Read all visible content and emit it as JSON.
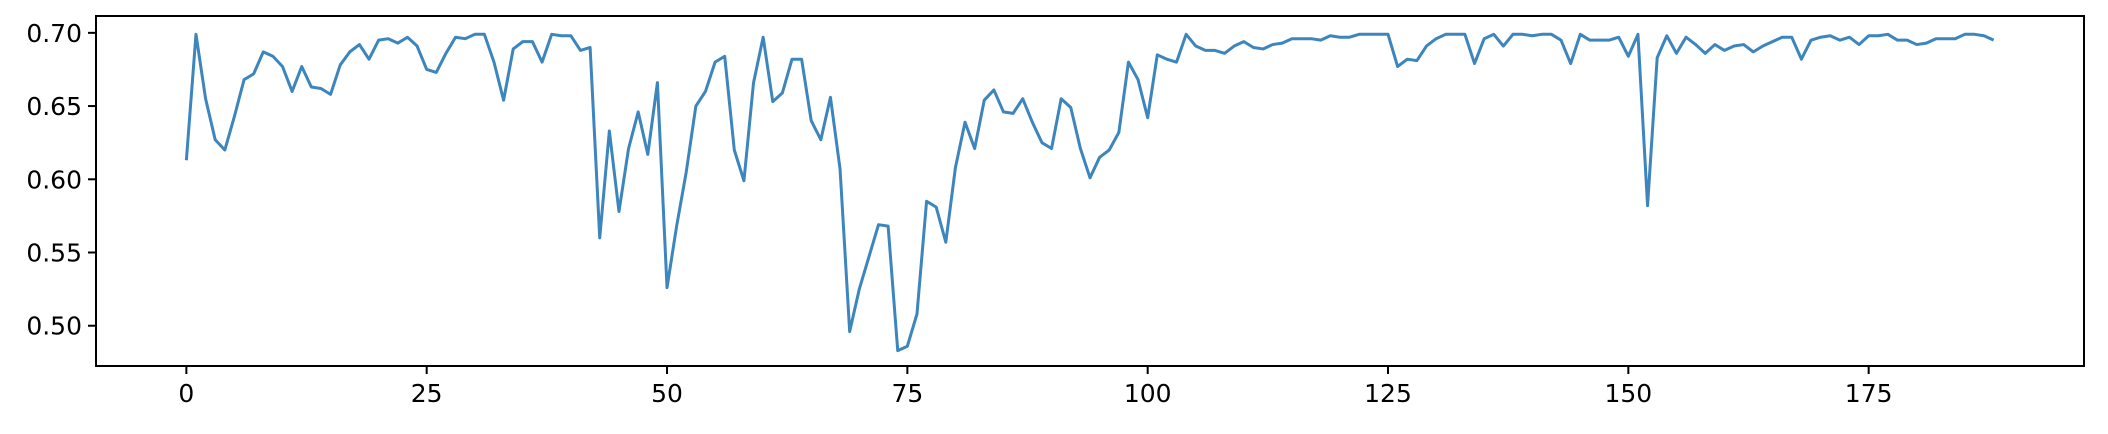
{
  "chart_data": {
    "type": "line",
    "title": "",
    "xlabel": "",
    "ylabel": "",
    "xlim": [
      -9.4,
      197.4
    ],
    "ylim": [
      0.4725,
      0.7115
    ],
    "xticks": [
      0,
      25,
      50,
      75,
      100,
      125,
      150,
      175
    ],
    "xtick_labels": [
      "0",
      "25",
      "50",
      "75",
      "100",
      "125",
      "150",
      "175"
    ],
    "yticks": [
      0.5,
      0.55,
      0.6,
      0.65,
      0.7
    ],
    "ytick_labels": [
      "0.50",
      "0.55",
      "0.60",
      "0.65",
      "0.70"
    ],
    "grid": false,
    "series": [
      {
        "color": "#3d85bd",
        "x_start": 0,
        "x_step": 1,
        "values": [
          0.613,
          0.699,
          0.655,
          0.627,
          0.62,
          0.643,
          0.668,
          0.672,
          0.687,
          0.684,
          0.677,
          0.66,
          0.677,
          0.663,
          0.662,
          0.658,
          0.678,
          0.687,
          0.692,
          0.682,
          0.695,
          0.696,
          0.693,
          0.697,
          0.691,
          0.675,
          0.673,
          0.686,
          0.697,
          0.696,
          0.699,
          0.699,
          0.68,
          0.654,
          0.689,
          0.694,
          0.694,
          0.68,
          0.699,
          0.698,
          0.698,
          0.688,
          0.69,
          0.56,
          0.633,
          0.578,
          0.621,
          0.646,
          0.617,
          0.666,
          0.526,
          0.568,
          0.605,
          0.65,
          0.66,
          0.68,
          0.684,
          0.62,
          0.599,
          0.666,
          0.697,
          0.653,
          0.659,
          0.682,
          0.682,
          0.64,
          0.627,
          0.656,
          0.607,
          0.496,
          0.525,
          0.547,
          0.569,
          0.568,
          0.483,
          0.486,
          0.508,
          0.585,
          0.581,
          0.557,
          0.608,
          0.639,
          0.621,
          0.654,
          0.661,
          0.646,
          0.645,
          0.655,
          0.639,
          0.625,
          0.621,
          0.655,
          0.649,
          0.621,
          0.601,
          0.615,
          0.62,
          0.632,
          0.68,
          0.668,
          0.642,
          0.685,
          0.682,
          0.68,
          0.699,
          0.691,
          0.688,
          0.688,
          0.686,
          0.691,
          0.694,
          0.69,
          0.689,
          0.692,
          0.693,
          0.696,
          0.696,
          0.696,
          0.695,
          0.698,
          0.697,
          0.697,
          0.699,
          0.699,
          0.699,
          0.699,
          0.677,
          0.682,
          0.681,
          0.691,
          0.696,
          0.699,
          0.699,
          0.699,
          0.679,
          0.696,
          0.699,
          0.691,
          0.699,
          0.699,
          0.698,
          0.699,
          0.699,
          0.695,
          0.679,
          0.699,
          0.695,
          0.695,
          0.695,
          0.697,
          0.684,
          0.699,
          0.582,
          0.683,
          0.698,
          0.686,
          0.697,
          0.692,
          0.686,
          0.692,
          0.688,
          0.691,
          0.692,
          0.687,
          0.691,
          0.694,
          0.697,
          0.697,
          0.682,
          0.695,
          0.697,
          0.698,
          0.695,
          0.697,
          0.692,
          0.698,
          0.698,
          0.699,
          0.695,
          0.695,
          0.692,
          0.693,
          0.696,
          0.696,
          0.696,
          0.699,
          0.699,
          0.698,
          0.695
        ]
      }
    ]
  }
}
